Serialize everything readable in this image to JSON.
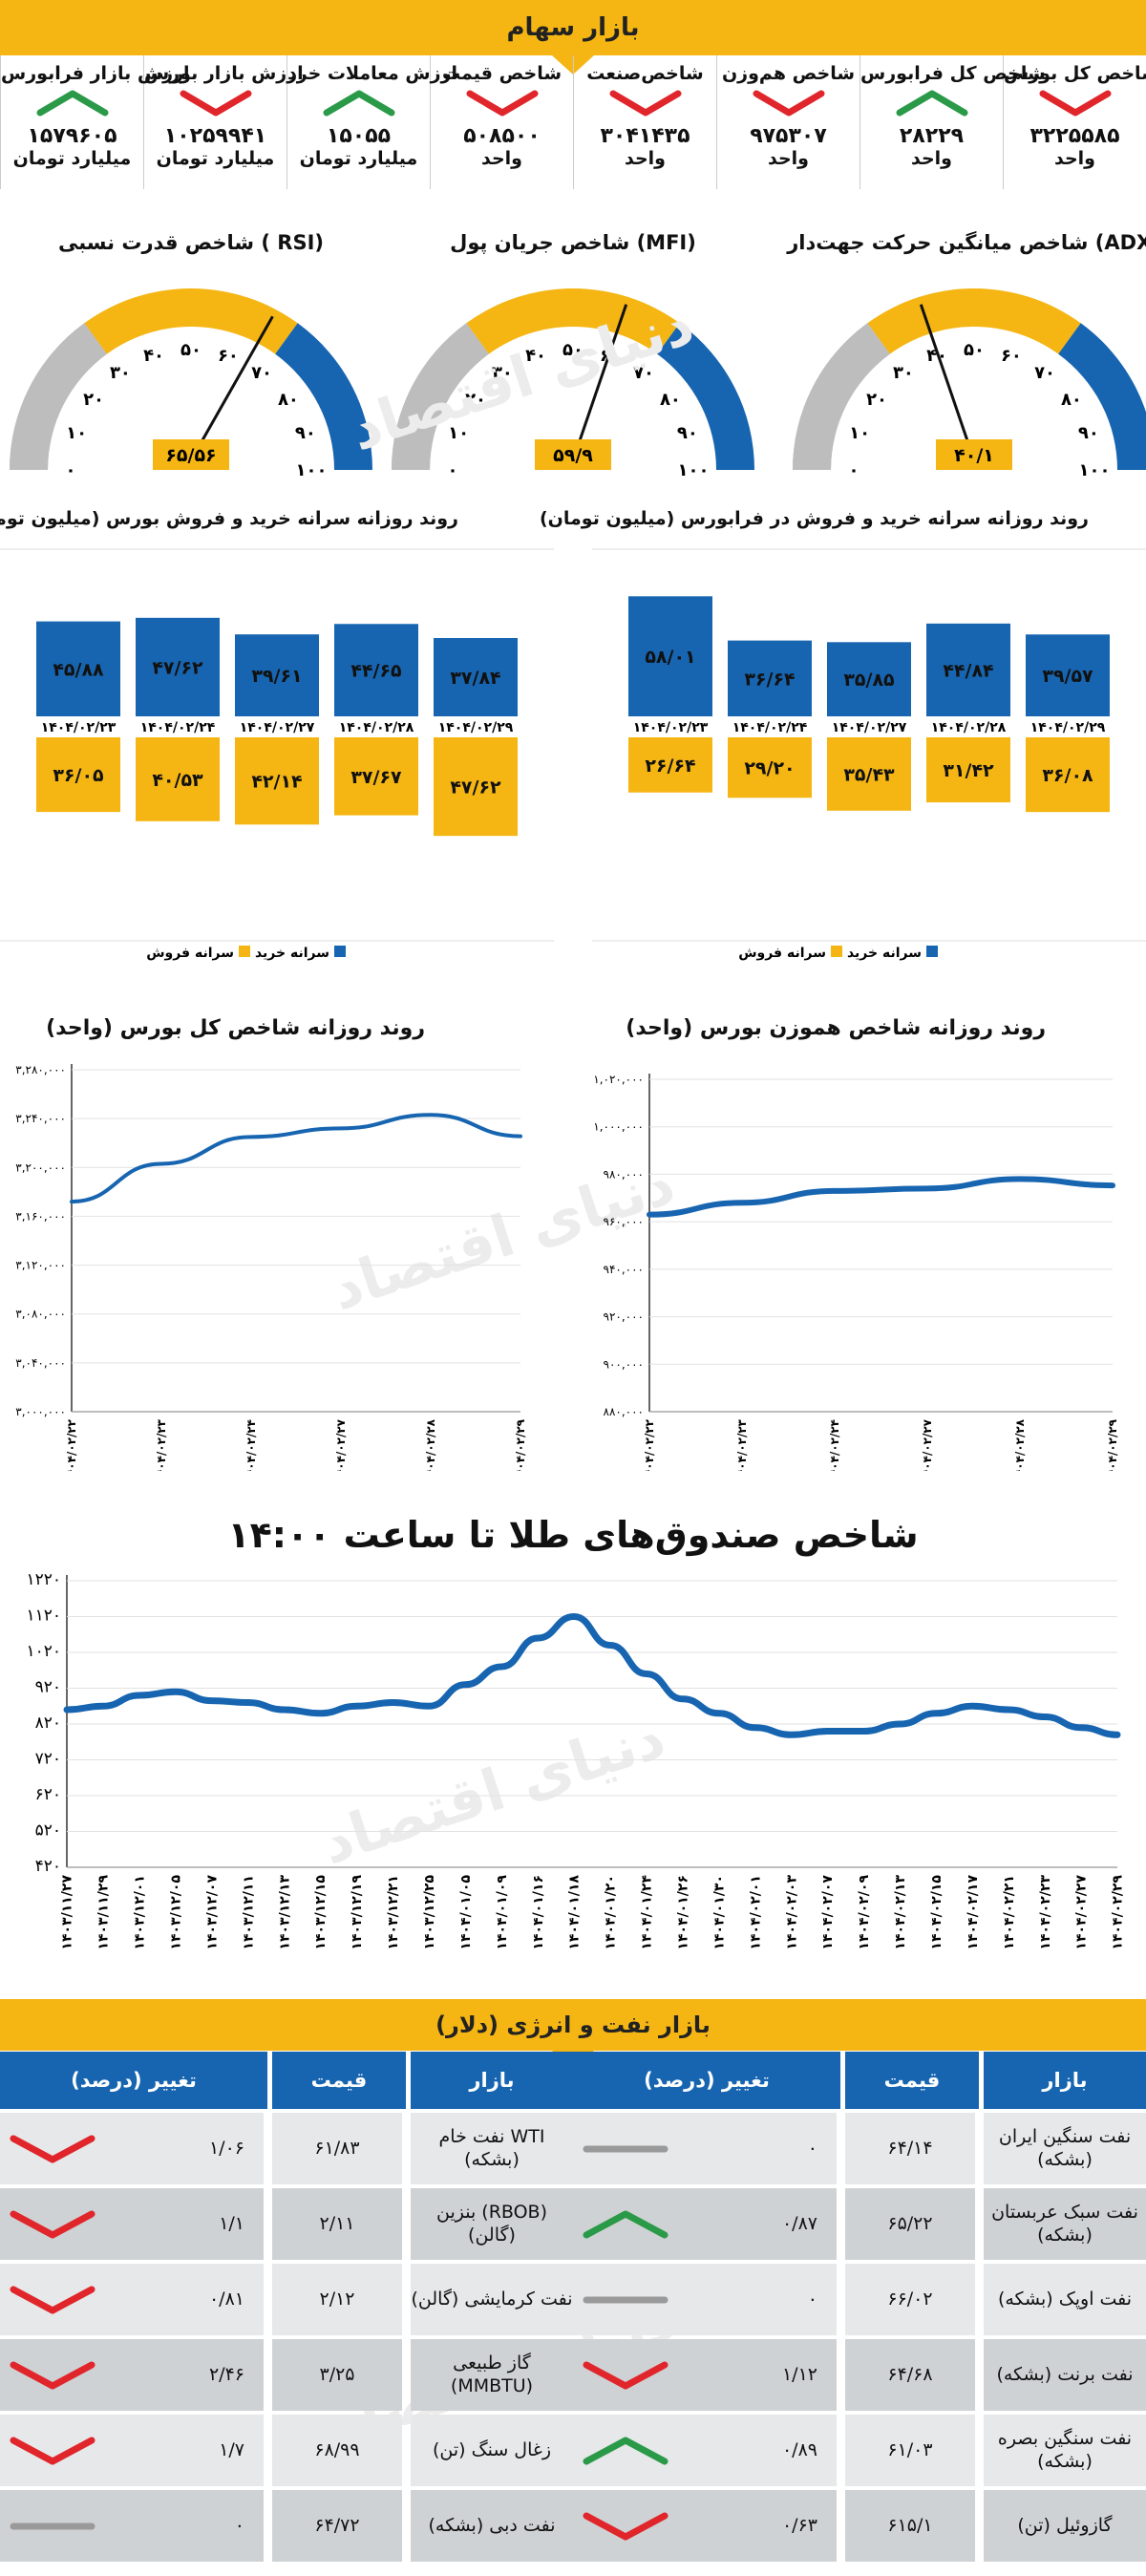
{
  "header": {
    "title": "بازار سهام"
  },
  "indices": [
    {
      "label": "شاخص کل بورس",
      "value": "۳۲۲۵۵۸۵",
      "unit": "واحد",
      "trend": "down"
    },
    {
      "label": "شاخص کل فرابورس",
      "value": "۲۸۲۲۹",
      "unit": "واحد",
      "trend": "up"
    },
    {
      "label": "شاخص هم‌وزن",
      "value": "۹۷۵۳۰۷",
      "unit": "واحد",
      "trend": "down"
    },
    {
      "label": "شاخص‌صنعت",
      "value": "۳۰۴۱۴۳۵",
      "unit": "واحد",
      "trend": "down"
    },
    {
      "label": "شاخص قیمت",
      "value": "۵۰۸۵۰۰",
      "unit": "واحد",
      "trend": "down"
    },
    {
      "label": "ارزش معاملات خرد",
      "value": "۱۵۰۵۵",
      "unit": "میلیارد تومان",
      "trend": "up"
    },
    {
      "label": "ارزش بازار بورس",
      "value": "۱۰۲۵۹۹۴۱",
      "unit": "میلیارد تومان",
      "trend": "down"
    },
    {
      "label": "ارزش بازار فرابورس",
      "value": "۱۵۷۹۶۰۵",
      "unit": "میلیارد تومان",
      "trend": "up"
    }
  ],
  "gauges": [
    {
      "title": "شاخص میانگین حرکت جهت‌دار (ADX)",
      "value": 40.1,
      "value_label": "۴۰/۱"
    },
    {
      "title": "شاخص جریان پول (MFI)",
      "value": 59.9,
      "value_label": "۵۹/۹"
    },
    {
      "title": "شاخص قدرت نسبی ( RSI)",
      "value": 65.56,
      "value_label": "۶۵/۵۶"
    }
  ],
  "gauge_ticks": [
    "۰",
    "۱۰",
    "۲۰",
    "۳۰",
    "۴۰",
    "۵۰",
    "۶۰",
    "۷۰",
    "۸۰",
    "۹۰",
    "۱۰۰"
  ],
  "colors": {
    "buy": "#1765b0",
    "sell": "#f5b614",
    "up": "#2a9a48",
    "down": "#e0252b",
    "neutral": "#9a9a9a",
    "line": "#1765b0"
  },
  "chart_data": [
    {
      "type": "bar",
      "title": "روند روزانه سرانه خرید و فروش در فرابورس (میلیون تومان)",
      "categories": [
        "۱۴۰۴/۰۲/۲۳",
        "۱۴۰۴/۰۲/۲۴",
        "۱۴۰۴/۰۲/۲۷",
        "۱۴۰۴/۰۲/۲۸",
        "۱۴۰۴/۰۲/۲۹"
      ],
      "series": [
        {
          "name": "سرانه خرید",
          "values": [
            58.01,
            36.64,
            35.85,
            44.84,
            39.57
          ],
          "labels": [
            "۵۸/۰۱",
            "۳۶/۶۴",
            "۳۵/۸۵",
            "۴۴/۸۴",
            "۳۹/۵۷"
          ]
        },
        {
          "name": "سرانه فروش",
          "values": [
            26.64,
            29.2,
            35.43,
            31.42,
            36.08
          ],
          "labels": [
            "۲۶/۶۴",
            "۲۹/۲۰",
            "۳۵/۴۳",
            "۳۱/۴۲",
            "۳۶/۰۸"
          ]
        }
      ]
    },
    {
      "type": "bar",
      "title": "روند روزانه سرانه خرید و فروش بورس (میلیون تومان)",
      "categories": [
        "۱۴۰۴/۰۲/۲۳",
        "۱۴۰۴/۰۲/۲۴",
        "۱۴۰۴/۰۲/۲۷",
        "۱۴۰۴/۰۲/۲۸",
        "۱۴۰۴/۰۲/۲۹"
      ],
      "series": [
        {
          "name": "سرانه خرید",
          "values": [
            45.88,
            47.62,
            39.61,
            44.65,
            37.84
          ],
          "labels": [
            "۴۵/۸۸",
            "۴۷/۶۲",
            "۳۹/۶۱",
            "۴۴/۶۵",
            "۳۷/۸۴"
          ]
        },
        {
          "name": "سرانه فروش",
          "values": [
            36.05,
            40.53,
            42.14,
            37.67,
            47.62
          ],
          "labels": [
            "۳۶/۰۵",
            "۴۰/۵۳",
            "۴۲/۱۴",
            "۳۷/۶۷",
            "۴۷/۶۲"
          ]
        }
      ]
    },
    {
      "type": "line",
      "title": "روند روزانه شاخص هموزن بورس (واحد)",
      "x": [
        "۱۴۰۴/۰۲/۲۲",
        "۱۴۰۴/۰۲/۲۳",
        "۱۴۰۴/۰۲/۲۴",
        "۱۴۰۴/۰۲/۲۷",
        "۱۴۰۴/۰۲/۲۸",
        "۱۴۰۴/۰۲/۲۹"
      ],
      "values": [
        963000,
        968000,
        973000,
        974000,
        978000,
        975307
      ],
      "ylim": [
        880000,
        1020000
      ],
      "yticks": [
        "۸۸۰,۰۰۰",
        "۹۰۰,۰۰۰",
        "۹۲۰,۰۰۰",
        "۹۴۰,۰۰۰",
        "۹۶۰,۰۰۰",
        "۹۸۰,۰۰۰",
        "۱,۰۰۰,۰۰۰",
        "۱,۰۲۰,۰۰۰"
      ]
    },
    {
      "type": "line",
      "title": "روند روزانه شاخص کل بورس (واحد)",
      "x": [
        "۱۴۰۴/۰۲/۲۲",
        "۱۴۰۴/۰۲/۲۳",
        "۱۴۰۴/۰۲/۲۴",
        "۱۴۰۴/۰۲/۲۷",
        "۱۴۰۴/۰۲/۲۸",
        "۱۴۰۴/۰۲/۲۹"
      ],
      "values": [
        3172000,
        3203000,
        3225000,
        3232000,
        3243000,
        3225585
      ],
      "ylim": [
        3000000,
        3280000
      ],
      "yticks": [
        "۳,۰۰۰,۰۰۰",
        "۳,۰۴۰,۰۰۰",
        "۳,۰۸۰,۰۰۰",
        "۳,۱۲۰,۰۰۰",
        "۳,۱۶۰,۰۰۰",
        "۳,۲۰۰,۰۰۰",
        "۳,۲۴۰,۰۰۰",
        "۳,۲۸۰,۰۰۰"
      ]
    },
    {
      "type": "line",
      "title": "شاخص صندوق‌های طلا تا ساعت ۱۴:۰۰",
      "x": [
        "۱۴۰۳/۱۱/۲۷",
        "۱۴۰۳/۱۱/۲۹",
        "۱۴۰۳/۱۲/۰۱",
        "۱۴۰۳/۱۲/۰۵",
        "۱۴۰۳/۱۲/۰۷",
        "۱۴۰۳/۱۲/۱۱",
        "۱۴۰۳/۱۲/۱۳",
        "۱۴۰۳/۱۲/۱۵",
        "۱۴۰۳/۱۲/۱۹",
        "۱۴۰۳/۱۲/۲۱",
        "۱۴۰۳/۱۲/۲۵",
        "۱۴۰۴/۰۱/۰۵",
        "۱۴۰۴/۰۱/۰۹",
        "۱۴۰۴/۰۱/۱۶",
        "۱۴۰۴/۰۱/۱۸",
        "۱۴۰۴/۰۱/۲۰",
        "۱۴۰۴/۰۱/۲۴",
        "۱۴۰۴/۰۱/۲۶",
        "۱۴۰۴/۰۱/۳۰",
        "۱۴۰۴/۰۲/۰۱",
        "۱۴۰۴/۰۲/۰۳",
        "۱۴۰۴/۰۲/۰۷",
        "۱۴۰۴/۰۲/۰۹",
        "۱۴۰۴/۰۲/۱۳",
        "۱۴۰۴/۰۲/۱۵",
        "۱۴۰۴/۰۲/۱۷",
        "۱۴۰۴/۰۲/۲۱",
        "۱۴۰۴/۰۲/۲۳",
        "۱۴۰۴/۰۲/۲۷",
        "۱۴۰۴/۰۲/۲۹"
      ],
      "values": [
        860,
        870,
        900,
        910,
        885,
        880,
        860,
        850,
        870,
        880,
        870,
        930,
        980,
        1060,
        1120,
        1040,
        960,
        890,
        850,
        810,
        790,
        800,
        800,
        820,
        850,
        870,
        860,
        840,
        810,
        790
      ],
      "ylim": [
        420,
        1220
      ],
      "yticks": [
        "۴۲۰",
        "۵۲۰",
        "۶۲۰",
        "۷۲۰",
        "۸۲۰",
        "۹۲۰",
        "۱۰۲۰",
        "۱۱۲۰",
        "۱۲۲۰"
      ]
    }
  ],
  "legend": {
    "buy": "سرانه خرید",
    "sell": "سرانه فروش"
  },
  "energy": {
    "title": "بازار نفت و انرژی (دلار)",
    "headers": [
      "بازار",
      "قیمت",
      "تغییر (درصد)"
    ],
    "right_rows": [
      {
        "market": "نفت سنگین ایران (بشکه)",
        "price": "۶۴/۱۴",
        "change": "۰",
        "trend": "neutral"
      },
      {
        "market": "نفت سبک عربستان (بشکه)",
        "price": "۶۵/۲۲",
        "change": "۰/۸۷",
        "trend": "up"
      },
      {
        "market": "نفت اوپک (بشکه)",
        "price": "۶۶/۰۲",
        "change": "۰",
        "trend": "neutral"
      },
      {
        "market": "نفت برنت (بشکه)",
        "price": "۶۴/۶۸",
        "change": "۱/۱۲",
        "trend": "down"
      },
      {
        "market": "نفت سنگین بصره (بشکه)",
        "price": "۶۱/۰۳",
        "change": "۰/۸۹",
        "trend": "up"
      },
      {
        "market": "گازوئیل (تن)",
        "price": "۶۱۵/۱",
        "change": "۰/۶۳",
        "trend": "down"
      }
    ],
    "left_rows": [
      {
        "market": "نفت خام WTI (بشکه)",
        "price": "۶۱/۸۳",
        "change": "۱/۰۶",
        "trend": "down"
      },
      {
        "market": "بنزین (RBOB) (گالن)",
        "price": "۲/۱۱",
        "change": "۱/۱",
        "trend": "down"
      },
      {
        "market": "نفت کرمایشی (گالن)",
        "price": "۲/۱۲",
        "change": "۰/۸۱",
        "trend": "down"
      },
      {
        "market": "گاز طبیعی (MMBTU)",
        "price": "۳/۲۵",
        "change": "۲/۴۶",
        "trend": "down"
      },
      {
        "market": "زغال سنگ (تن)",
        "price": "۶۸/۹۹",
        "change": "۱/۷",
        "trend": "down"
      },
      {
        "market": "نفت دبی (بشکه)",
        "price": "۶۴/۷۲",
        "change": "۰",
        "trend": "neutral"
      }
    ]
  },
  "watermark": "دنیای اقتصاد"
}
